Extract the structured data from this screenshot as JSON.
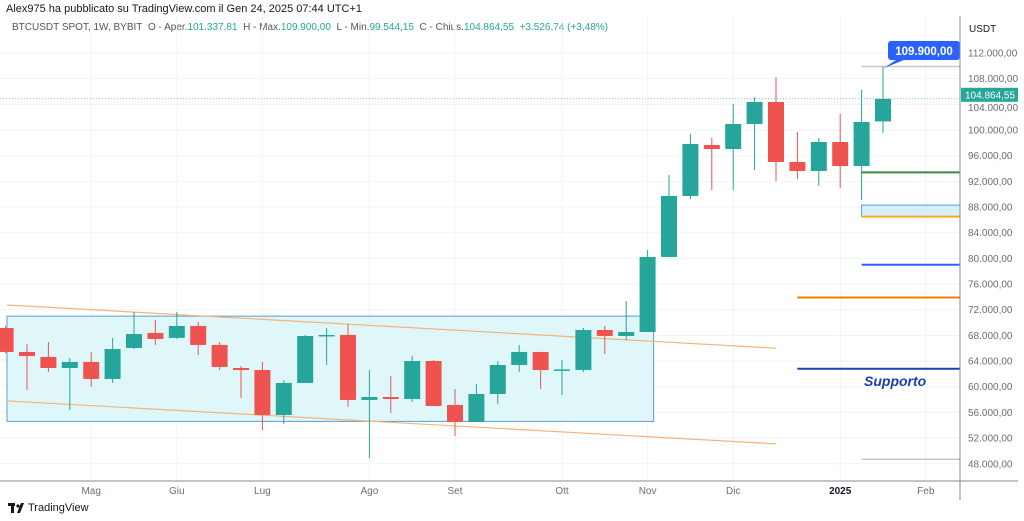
{
  "header": {
    "published": "Alex975 ha pubblicato su TradingView.com il Gen 24, 2025 07:44 UTC+1"
  },
  "legend": {
    "symbol": "BTCUSDT SPOT, 1W, BYBIT",
    "open_label": "O - Aper.",
    "open": "101.337,81",
    "high_label": "H - Max.",
    "high": "109.900,00",
    "low_label": "L - Min.",
    "low": "99.544,15",
    "close_label": "C - Chius.",
    "close": "104.864,55",
    "change": "+3.526,74 (+3,48%)"
  },
  "footer": {
    "brand": "TradingView"
  },
  "colors": {
    "up": "#26a69a",
    "down": "#ef5350",
    "box": "#e0f7fa",
    "box_border": "#5b9bd5",
    "channel": "#f5b37a"
  },
  "chart_data": {
    "type": "candlestick",
    "currency_label": "USDT",
    "ylim": [
      45000,
      115000
    ],
    "yticks": [
      112000,
      108000,
      104000,
      100000,
      96000,
      92000,
      88000,
      84000,
      80000,
      76000,
      72000,
      68000,
      64000,
      60000,
      56000,
      52000,
      48000
    ],
    "ytick_labels": [
      "112.000,00",
      "108.000,00",
      "104.000,00",
      "100.000,00",
      "96.000,00",
      "92.000,00",
      "88.000,00",
      "84.000,00",
      "80.000,00",
      "76.000,00",
      "72.000,00",
      "68.000,00",
      "64.000,00",
      "60.000,00",
      "56.000,00",
      "52.000,00",
      "48.000,00"
    ],
    "xticks": [
      {
        "label": "Mag",
        "index": 4,
        "bold": false
      },
      {
        "label": "Giu",
        "index": 8,
        "bold": false
      },
      {
        "label": "Lug",
        "index": 12,
        "bold": false
      },
      {
        "label": "Ago",
        "index": 17,
        "bold": false
      },
      {
        "label": "Set",
        "index": 21,
        "bold": false
      },
      {
        "label": "Ott",
        "index": 26,
        "bold": false
      },
      {
        "label": "Nov",
        "index": 30,
        "bold": false
      },
      {
        "label": "Dic",
        "index": 34,
        "bold": false
      },
      {
        "label": "2025",
        "index": 39,
        "bold": true
      },
      {
        "label": "Feb",
        "index": 43,
        "bold": false
      }
    ],
    "candles": [
      [
        69150,
        69500,
        65200,
        65420
      ],
      [
        65420,
        66660,
        59490,
        64790
      ],
      [
        64640,
        66970,
        62300,
        62920
      ],
      [
        62920,
        64480,
        56380,
        63860
      ],
      [
        63860,
        65420,
        59960,
        61210
      ],
      [
        61210,
        67600,
        60590,
        65880
      ],
      [
        66040,
        71650,
        65880,
        68220
      ],
      [
        68380,
        70400,
        66510,
        67440
      ],
      [
        67600,
        71650,
        67440,
        69470
      ],
      [
        69470,
        70090,
        64950,
        66510
      ],
      [
        66510,
        66970,
        62610,
        63080
      ],
      [
        62920,
        63230,
        58250,
        62610
      ],
      [
        62610,
        63860,
        53260,
        55600
      ],
      [
        55600,
        61050,
        54200,
        60590
      ],
      [
        60590,
        68070,
        60590,
        67910
      ],
      [
        67910,
        69150,
        63390,
        68070
      ],
      [
        68070,
        69780,
        56850,
        57940
      ],
      [
        57940,
        62610,
        48900,
        58400
      ],
      [
        58400,
        61680,
        55910,
        58090
      ],
      [
        58090,
        64790,
        57630,
        64010
      ],
      [
        64010,
        64170,
        57000,
        57000
      ],
      [
        57160,
        59650,
        52330,
        54510
      ],
      [
        54510,
        60430,
        54510,
        58870
      ],
      [
        58870,
        64010,
        57310,
        63390
      ],
      [
        63390,
        66510,
        62300,
        65420
      ],
      [
        65420,
        65420,
        59650,
        62610
      ],
      [
        62610,
        64170,
        58720,
        62700
      ],
      [
        62610,
        69150,
        62300,
        68840
      ],
      [
        68840,
        69470,
        65100,
        67910
      ],
      [
        67910,
        73360,
        67290,
        68530
      ],
      [
        68530,
        81310,
        68530,
        80220
      ],
      [
        80220,
        92990,
        80220,
        89720
      ],
      [
        89720,
        99380,
        89250,
        97820
      ],
      [
        97670,
        98760,
        90660,
        97040
      ],
      [
        97040,
        104050,
        90660,
        100940
      ],
      [
        100940,
        105140,
        93770,
        104370
      ],
      [
        104370,
        108260,
        92060,
        95020
      ],
      [
        95020,
        99690,
        92370,
        93620
      ],
      [
        93620,
        98760,
        91280,
        98130
      ],
      [
        98130,
        102500,
        90970,
        94390
      ],
      [
        94390,
        106240,
        89100,
        101250
      ],
      [
        101337.81,
        109900,
        99544.15,
        104864.55
      ]
    ],
    "candle_format": [
      "open",
      "high",
      "low",
      "close"
    ],
    "last_price": 104864.55,
    "last_price_label": "104.864,55",
    "high_callout": "109.900,00",
    "range_box": {
      "top": 71000,
      "bottom": 54600,
      "from_index": 0,
      "to_index": 30
    },
    "channel": {
      "upper": [
        72740,
        66000
      ],
      "lower": [
        57790,
        51100
      ],
      "from_index": 0,
      "to_index": 36
    },
    "levels": [
      {
        "name": "high",
        "price": 109900,
        "color": "#c8c8c8"
      },
      {
        "name": "green",
        "price": 93400,
        "color": "#388e3c"
      },
      {
        "name": "zone-top",
        "price": 88300,
        "color": "#42a5f5"
      },
      {
        "name": "zone-bottom",
        "price": 86500,
        "color": "#f9a825"
      },
      {
        "name": "blue",
        "price": 79000,
        "color": "#2962ff"
      },
      {
        "name": "orange",
        "price": 73900,
        "color": "#f57c00"
      },
      {
        "name": "support",
        "price": 62800,
        "color": "#1e40af"
      },
      {
        "name": "grey-low",
        "price": 48700,
        "color": "#c8c8c8"
      }
    ],
    "support_label": "Supporto"
  }
}
